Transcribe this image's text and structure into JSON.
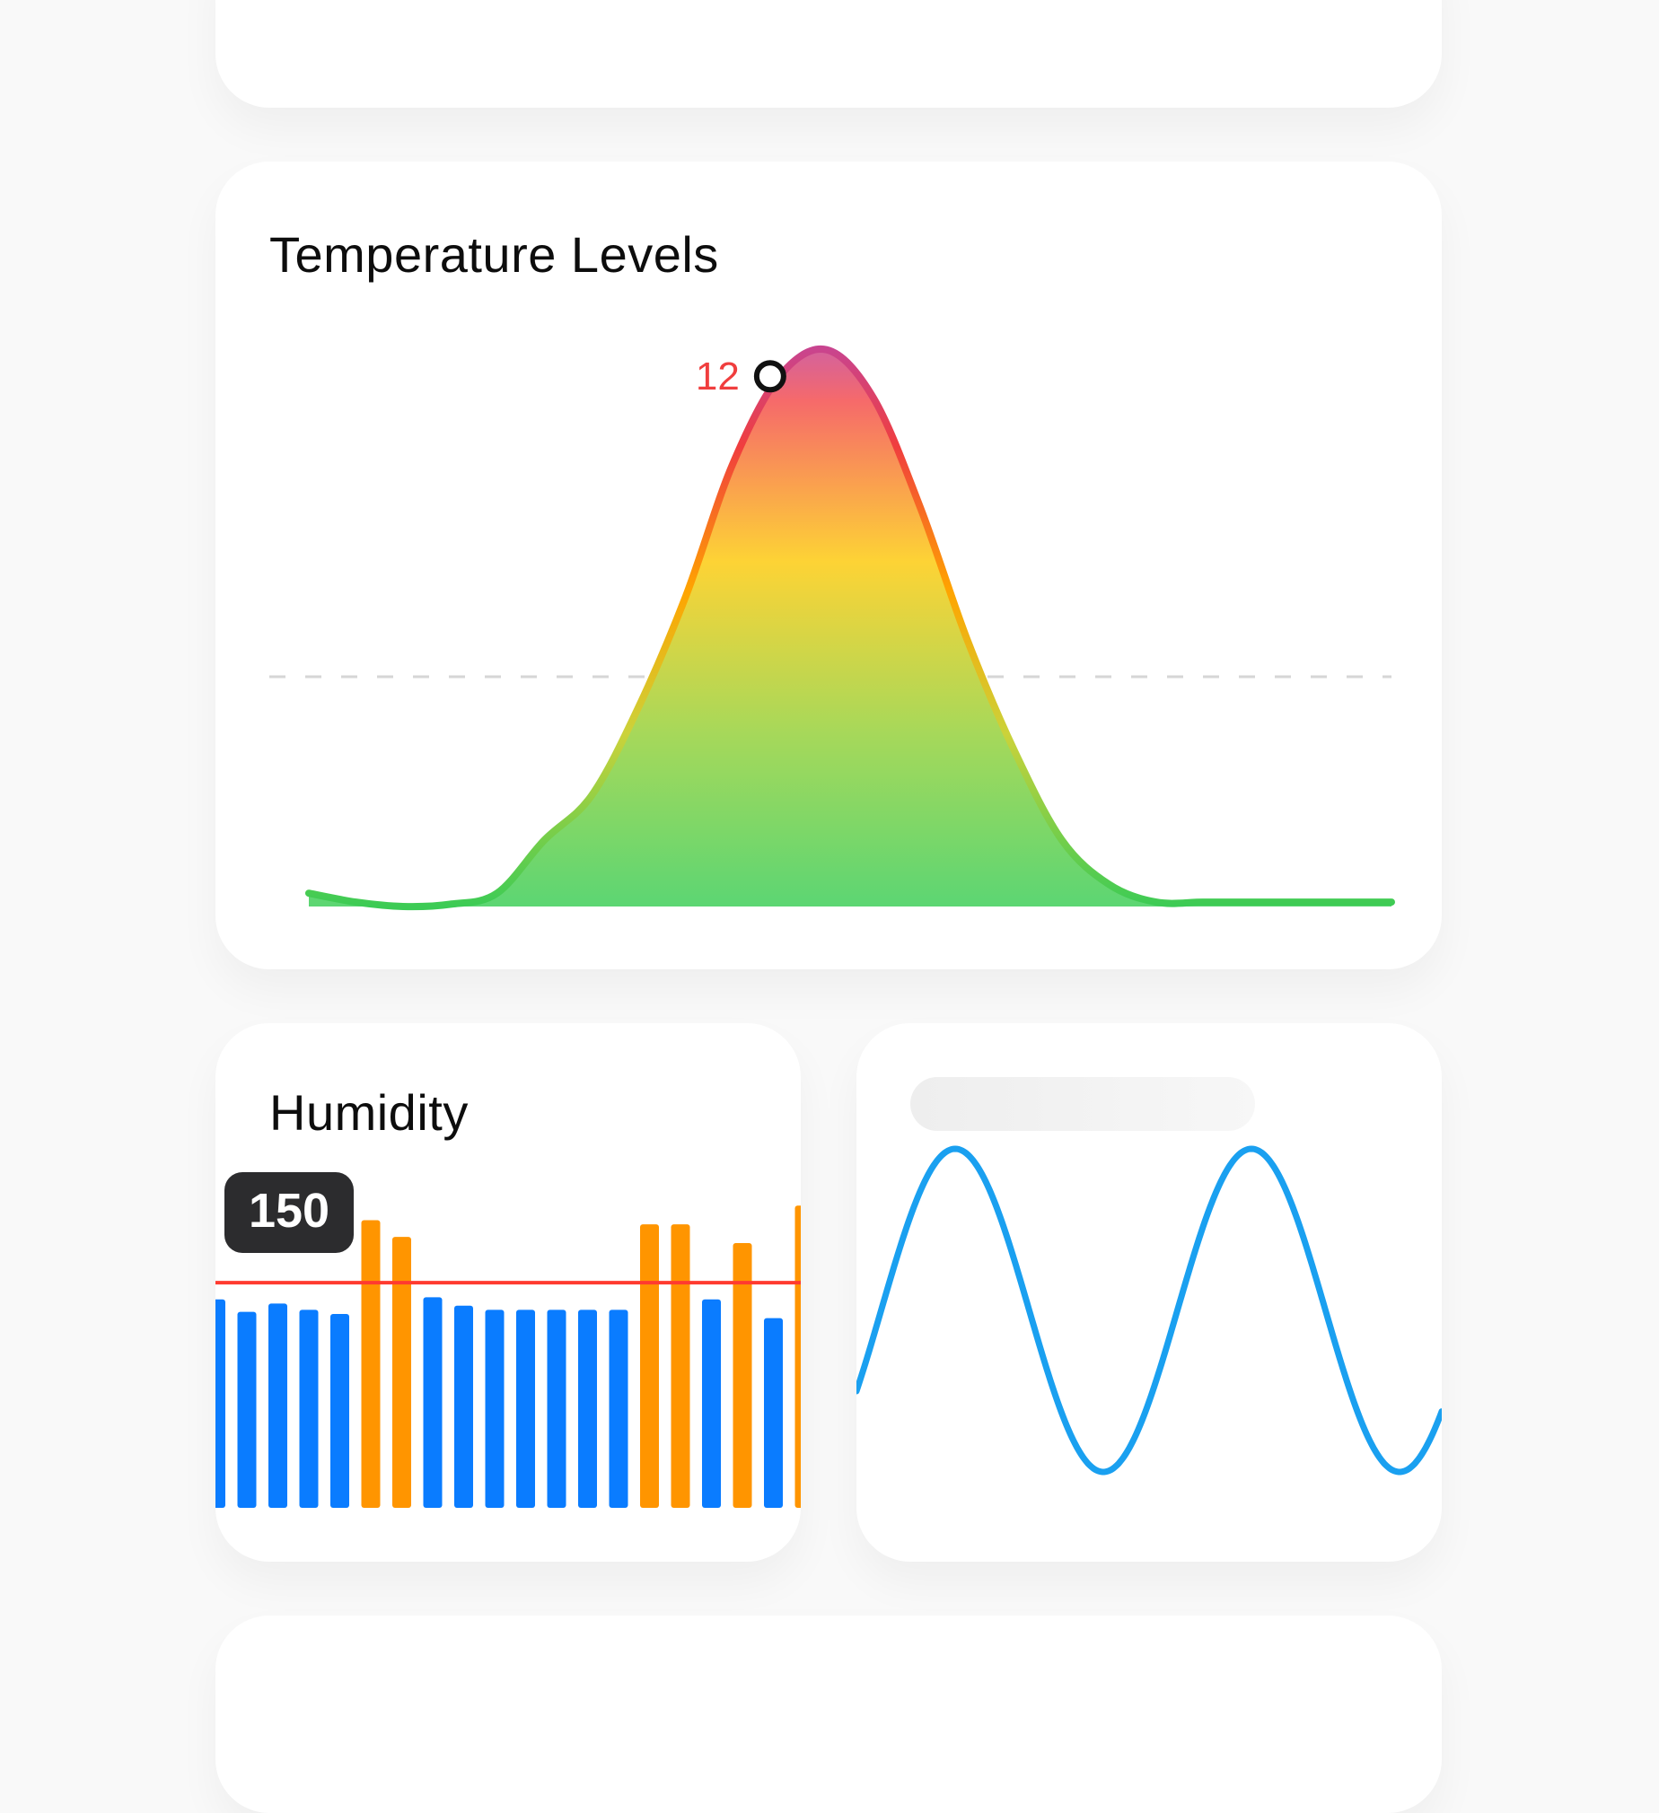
{
  "temperature": {
    "title": "Temperature Levels",
    "chart_data": {
      "type": "area",
      "title": "Temperature Levels",
      "x": [
        0,
        1,
        2,
        3,
        4,
        5,
        6,
        7,
        8,
        9,
        10,
        11,
        12,
        13,
        14,
        15,
        16,
        17,
        18,
        19,
        20,
        21,
        22,
        23
      ],
      "values": [
        0.3,
        0.1,
        0.0,
        0.05,
        0.3,
        1.5,
        2.5,
        4.5,
        7.0,
        10.0,
        12.0,
        12.6,
        11.5,
        9.0,
        6.0,
        3.5,
        1.5,
        0.5,
        0.1,
        0.1,
        0.1,
        0.1,
        0.1,
        0.1
      ],
      "ylim": [
        0,
        13
      ],
      "highlight": {
        "label": "12",
        "x": 9.8,
        "value": 12.0
      },
      "reference_line": {
        "style": "dashed",
        "value": 5.2
      },
      "colors": {
        "low": "#4cd964",
        "mid": "#ffd43b",
        "high": "#f03e3e",
        "peak": "#c2459c",
        "marker": "#111111",
        "label": "#f03e3e"
      }
    }
  },
  "humidity": {
    "title": "Humidity",
    "badge": "150",
    "chart_data": {
      "type": "bar",
      "values": [
        100,
        94,
        98,
        95,
        93,
        138,
        130,
        101,
        97,
        95,
        95,
        95,
        95,
        95,
        136,
        136,
        100,
        127,
        91,
        145
      ],
      "ylim": [
        0,
        155
      ],
      "threshold": 108,
      "colors": {
        "normal": "#0a7cff",
        "above": "#ff9500",
        "threshold": "#ff3b30",
        "badge_bg": "#2c2c2e",
        "badge_text": "#ffffff"
      }
    }
  },
  "wave": {
    "chart_data": {
      "type": "line",
      "function": "sine",
      "cycles": 2,
      "color": "#1aa0f0"
    }
  }
}
